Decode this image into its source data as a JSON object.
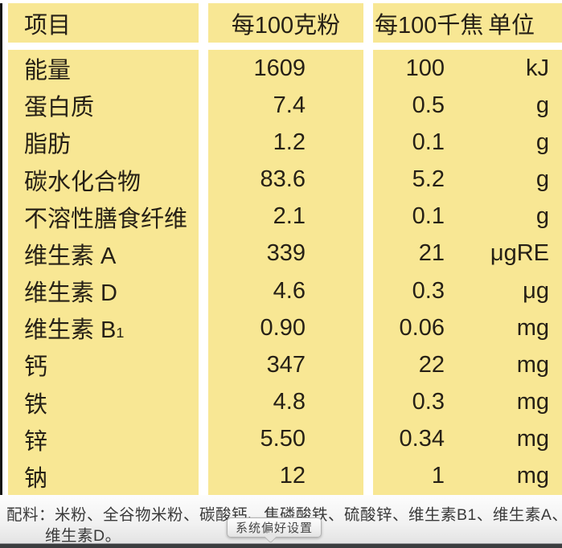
{
  "table": {
    "header": {
      "item": "项目",
      "per_100g": "每100克粉",
      "per_100kj": "每100千焦",
      "unit": "单位"
    },
    "rows": [
      {
        "name": "能量",
        "per_100g": "1609",
        "per_100kj": "100",
        "unit": "kJ"
      },
      {
        "name": "蛋白质",
        "per_100g": "7.4",
        "per_100kj": "0.5",
        "unit": "g"
      },
      {
        "name": "脂肪",
        "per_100g": "1.2",
        "per_100kj": "0.1",
        "unit": "g"
      },
      {
        "name": "碳水化合物",
        "per_100g": "83.6",
        "per_100kj": "5.2",
        "unit": "g"
      },
      {
        "name": "不溶性膳食纤维",
        "per_100g": "2.1",
        "per_100kj": "0.1",
        "unit": "g"
      },
      {
        "name": "维生素 A",
        "per_100g": "339",
        "per_100kj": "21",
        "unit": "μgRE"
      },
      {
        "name": "维生素 D",
        "per_100g": "4.6",
        "per_100kj": "0.3",
        "unit": "μg"
      },
      {
        "name": "维生素 B",
        "name_sub": "1",
        "per_100g": "0.90",
        "per_100kj": "0.06",
        "unit": "mg"
      },
      {
        "name": "钙",
        "per_100g": "347",
        "per_100kj": "22",
        "unit": "mg"
      },
      {
        "name": "铁",
        "per_100g": "4.8",
        "per_100kj": "0.3",
        "unit": "mg"
      },
      {
        "name": "锌",
        "per_100g": "5.50",
        "per_100kj": "0.34",
        "unit": "mg"
      },
      {
        "name": "钠",
        "per_100g": "12",
        "per_100kj": "1",
        "unit": "mg"
      }
    ]
  },
  "ingredients": {
    "line1": "配料：米粉、全谷物米粉、碳酸钙、焦磷酸铁、硫酸锌、维生素B1、维生素A、",
    "line2": "维生素D。"
  },
  "tooltip": {
    "label": "系统偏好设置"
  },
  "colors": {
    "table_bg": "#f8e794",
    "table_text": "#262016",
    "left_bar": "#141414",
    "dock_bar": "#3b3d3f"
  }
}
